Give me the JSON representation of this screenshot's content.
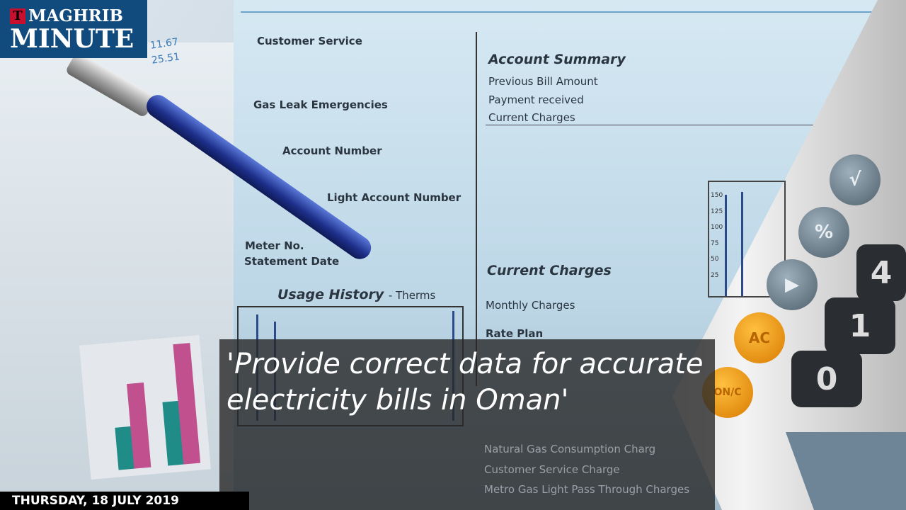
{
  "brand": {
    "logo_line1": "MAGHRIB",
    "logo_line2": "MINUTE",
    "logo_mark": "T",
    "color": "#114a7c"
  },
  "headline": "'Provide correct data for accurate electricity bills in Oman'",
  "date": "THURSDAY, 18 JULY 2019",
  "photo": {
    "left_numbers": [
      "11.67",
      "25.51"
    ],
    "bill_labels": [
      "Customer Service",
      "Gas Leak Emergencies",
      "Account Number",
      "Light Account Number",
      "Meter No.",
      "Statement Date"
    ],
    "usage_history": "Usage History",
    "usage_unit": "- Therms",
    "account_summary": {
      "title": "Account Summary",
      "items": [
        "Previous Bill Amount",
        "Payment received",
        "Current Charges"
      ]
    },
    "current_charges": {
      "title": "Current Charges",
      "items": [
        "Monthly Charges",
        "Rate Plan"
      ]
    },
    "faded_lines": [
      "Natural Gas Consumption Charg",
      "Customer Service Charge",
      "Metro Gas Light Pass Through Charges"
    ],
    "axis_ticks": [
      "150",
      "125",
      "100",
      "75",
      "50",
      "25"
    ],
    "calculator_keys": [
      "√",
      "%",
      "▶",
      "AC",
      "ON/C",
      "4",
      "1",
      "0"
    ]
  }
}
